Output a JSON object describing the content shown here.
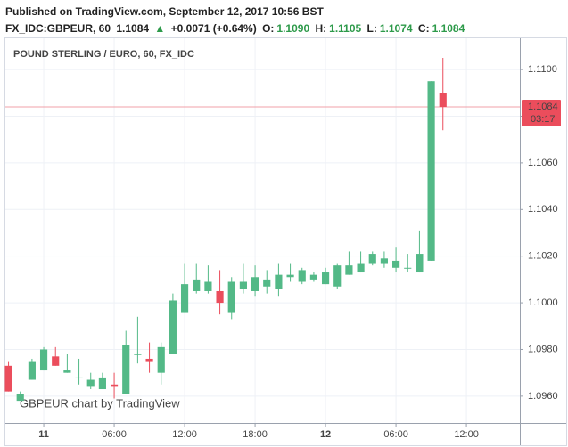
{
  "header": {
    "published": "Published on TradingView.com, September 12, 2017 10:56 BST",
    "symbol": "FX_IDC:GBPEUR, 60",
    "last": "1.1084",
    "arrow": "▲",
    "change": "+0.0071 (+0.64%)",
    "o_label": "O:",
    "o": "1.1090",
    "h_label": "H:",
    "h": "1.1105",
    "l_label": "L:",
    "l": "1.1074",
    "c_label": "C:",
    "c": "1.1084"
  },
  "chart_data": {
    "type": "candlestick",
    "title": "POUND STERLING / EURO, 60, FX_IDC",
    "watermark": "GBPEUR chart by TradingView",
    "x": [
      -3,
      -2,
      -1,
      0,
      1,
      2,
      3,
      4,
      5,
      6,
      7,
      8,
      9,
      10,
      11,
      12,
      13,
      14,
      15,
      16,
      17,
      18,
      19,
      20,
      21,
      22,
      23,
      24,
      25,
      26,
      27,
      28,
      29,
      30,
      31,
      32,
      33,
      34
    ],
    "open": [
      1.0973,
      1.0958,
      1.0967,
      1.0971,
      1.0977,
      1.097,
      1.0968,
      1.0964,
      1.0963,
      1.0965,
      1.0961,
      1.0978,
      1.0976,
      1.097,
      1.0978,
      1.0996,
      1.1005,
      1.1005,
      1.1005,
      1.0996,
      1.1006,
      1.1005,
      1.1007,
      1.1006,
      1.1011,
      1.1009,
      1.101,
      1.1008,
      1.1007,
      1.1012,
      1.1013,
      1.1017,
      1.1017,
      1.1015,
      1.1015,
      1.1013,
      1.1018,
      1.109
    ],
    "high": [
      1.0975,
      1.0962,
      1.0976,
      1.0981,
      1.0981,
      1.0978,
      1.0976,
      1.097,
      1.097,
      1.097,
      1.0988,
      1.0994,
      1.0983,
      1.0983,
      1.1004,
      1.1017,
      1.1017,
      1.1016,
      1.1014,
      1.1011,
      1.1017,
      1.1016,
      1.1014,
      1.1017,
      1.1017,
      1.1015,
      1.1013,
      1.1015,
      1.1017,
      1.1022,
      1.1022,
      1.1022,
      1.1022,
      1.1024,
      1.1021,
      1.1031,
      1.1095,
      1.1105
    ],
    "low": [
      1.0962,
      1.0958,
      1.0967,
      1.0971,
      1.0973,
      1.097,
      1.0965,
      1.0963,
      1.0963,
      1.0959,
      1.0961,
      1.0974,
      1.097,
      1.0965,
      1.0978,
      1.0996,
      1.1004,
      1.1004,
      1.0995,
      1.0993,
      1.1004,
      1.1003,
      1.1004,
      1.1003,
      1.1009,
      1.1008,
      1.1009,
      1.1008,
      1.1006,
      1.1012,
      1.1013,
      1.1016,
      1.1015,
      1.1013,
      1.1013,
      1.1013,
      1.1018,
      1.1074
    ],
    "close": [
      1.0962,
      1.0961,
      1.0975,
      1.098,
      1.0973,
      1.0971,
      1.0968,
      1.0967,
      1.0968,
      1.0964,
      1.0982,
      1.0978,
      1.0975,
      1.0981,
      1.1001,
      1.1008,
      1.101,
      1.1009,
      1.1,
      1.1009,
      1.1009,
      1.1011,
      1.101,
      1.1012,
      1.1012,
      1.1014,
      1.1012,
      1.1013,
      1.1016,
      1.1016,
      1.1017,
      1.1021,
      1.1019,
      1.1018,
      1.1015,
      1.1021,
      1.1095,
      1.1084
    ],
    "up_color": "#53b987",
    "down_color": "#eb4d5c",
    "xlim": [
      -3.27,
      40.55
    ],
    "xticks": [
      {
        "value": 0,
        "label": "11"
      },
      {
        "value": 6,
        "label": "06:00"
      },
      {
        "value": 12,
        "label": "12:00"
      },
      {
        "value": 18,
        "label": "18:00"
      },
      {
        "value": 24,
        "label": "12"
      },
      {
        "value": 30,
        "label": "06:00"
      },
      {
        "value": 36,
        "label": "12:00"
      }
    ],
    "ylim": [
      1.09485,
      1.11134
    ],
    "yticks": [
      {
        "value": 1.096,
        "label": "1.0960"
      },
      {
        "value": 1.098,
        "label": "1.0980"
      },
      {
        "value": 1.1,
        "label": "1.1000"
      },
      {
        "value": 1.102,
        "label": "1.1020"
      },
      {
        "value": 1.104,
        "label": "1.1040"
      },
      {
        "value": 1.106,
        "label": "1.1060"
      },
      {
        "value": 1.108,
        "label": "1.1080"
      },
      {
        "value": 1.11,
        "label": "1.1100"
      }
    ],
    "current_price": {
      "value": 1.1084,
      "label": "1.1084"
    },
    "countdown": "03:17",
    "grid": true
  }
}
